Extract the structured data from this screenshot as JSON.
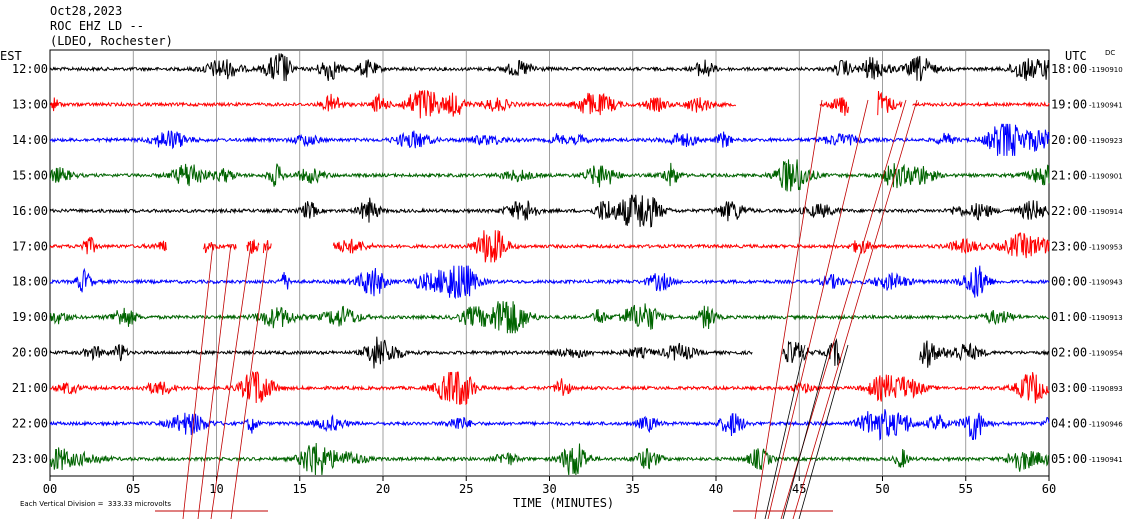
{
  "header": {
    "date": "Oct28,2023",
    "station": "ROC EHZ LD --",
    "network": "(LDEO, Rochester)"
  },
  "left_axis_label": "EST",
  "right_axis_label": "UTC",
  "dc_label": "DC",
  "chart_data": {
    "type": "line",
    "xlabel": "TIME (MINUTES)",
    "xlim": [
      0,
      60
    ],
    "x_ticks": [
      "00",
      "05",
      "10",
      "15",
      "20",
      "25",
      "30",
      "35",
      "40",
      "45",
      "50",
      "55",
      "60"
    ],
    "scale_note": "Each Vertical Division =  333.33 microvolts",
    "rows": [
      {
        "est": "12:00",
        "utc": "18:00",
        "dc": "-1190910",
        "color": "#000000"
      },
      {
        "est": "13:00",
        "utc": "19:00",
        "dc": "-1190941",
        "color": "#ff0000"
      },
      {
        "est": "14:00",
        "utc": "20:00",
        "dc": "-1190923",
        "color": "#0000ff"
      },
      {
        "est": "15:00",
        "utc": "21:00",
        "dc": "-1190901",
        "color": "#006400"
      },
      {
        "est": "16:00",
        "utc": "22:00",
        "dc": "-1190914",
        "color": "#000000"
      },
      {
        "est": "17:00",
        "utc": "23:00",
        "dc": "-1190953",
        "color": "#ff0000"
      },
      {
        "est": "18:00",
        "utc": "00:00",
        "dc": "-1190943",
        "color": "#0000ff"
      },
      {
        "est": "19:00",
        "utc": "01:00",
        "dc": "-1190913",
        "color": "#006400"
      },
      {
        "est": "20:00",
        "utc": "02:00",
        "dc": "-1190954",
        "color": "#000000"
      },
      {
        "est": "21:00",
        "utc": "03:00",
        "dc": "-1190893",
        "color": "#ff0000"
      },
      {
        "est": "22:00",
        "utc": "04:00",
        "dc": "-1190946",
        "color": "#0000ff"
      },
      {
        "est": "23:00",
        "utc": "05:00",
        "dc": "-1190941",
        "color": "#006400"
      }
    ]
  }
}
